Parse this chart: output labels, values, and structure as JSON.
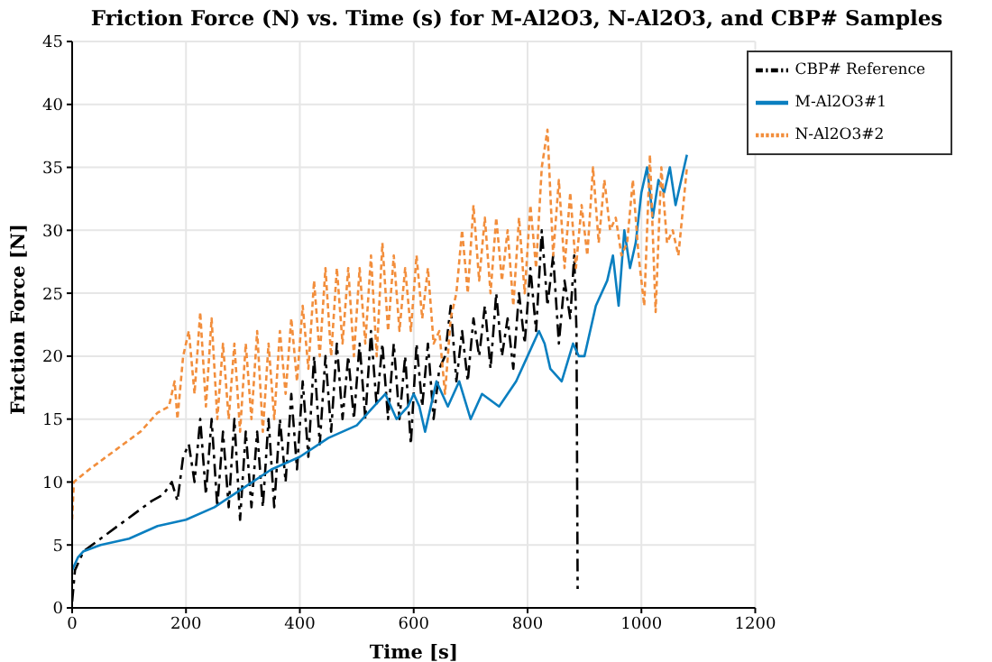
{
  "chart_data": {
    "type": "line",
    "title": "Friction Force (N) vs. Time (s) for M-Al2O3, N-Al2O3, and CBP# Samples",
    "xlabel": "Time [s]",
    "ylabel": "Friction Force [N]",
    "xlim": [
      0,
      1200
    ],
    "xticks": [
      0,
      200,
      400,
      600,
      800,
      1000,
      1200
    ],
    "ylim": [
      0,
      45
    ],
    "yticks": [
      0,
      5,
      10,
      15,
      20,
      25,
      30,
      35,
      40,
      45
    ],
    "grid": true,
    "legend": "top right",
    "marker": "none",
    "series": [
      {
        "name": "CBP# Reference",
        "color": "#000000",
        "line_style": "dashed",
        "x": [
          0,
          5,
          20,
          50,
          80,
          110,
          140,
          160,
          175,
          185,
          195,
          205,
          215,
          225,
          235,
          245,
          255,
          265,
          275,
          285,
          295,
          305,
          315,
          325,
          335,
          345,
          355,
          365,
          375,
          385,
          395,
          405,
          415,
          425,
          435,
          445,
          455,
          465,
          475,
          485,
          495,
          505,
          515,
          525,
          535,
          545,
          555,
          565,
          575,
          585,
          595,
          605,
          615,
          625,
          635,
          645,
          655,
          665,
          675,
          685,
          695,
          705,
          715,
          725,
          735,
          745,
          755,
          765,
          775,
          785,
          795,
          805,
          815,
          825,
          835,
          845,
          855,
          865,
          875,
          882,
          886,
          888
        ],
        "values": [
          0.5,
          3,
          4.5,
          5.5,
          6.5,
          7.5,
          8.5,
          9,
          10,
          8.5,
          12,
          13,
          10,
          15,
          9,
          15,
          8,
          14,
          8,
          15,
          7,
          14,
          8,
          14,
          8,
          15,
          8,
          15,
          10,
          17,
          11,
          18,
          12,
          20,
          13,
          20,
          14,
          21,
          15,
          20,
          15,
          21,
          15,
          22,
          16,
          21,
          15,
          21,
          15,
          20,
          13,
          21,
          16,
          21,
          15,
          19,
          20,
          24,
          18,
          22,
          18,
          23,
          20,
          24,
          19,
          25,
          20,
          23,
          19,
          25,
          21,
          27,
          22,
          30,
          24,
          28,
          21,
          26,
          23,
          28,
          22,
          1.5
        ]
      },
      {
        "name": "M-Al2O3#1",
        "color": "#0a7fc0",
        "line_style": "solid",
        "x": [
          0,
          10,
          20,
          50,
          100,
          150,
          200,
          250,
          300,
          350,
          400,
          450,
          500,
          530,
          550,
          570,
          590,
          600,
          610,
          620,
          640,
          660,
          680,
          700,
          720,
          750,
          780,
          800,
          820,
          830,
          840,
          860,
          880,
          890,
          900,
          920,
          940,
          950,
          960,
          970,
          980,
          990,
          1000,
          1010,
          1020,
          1030,
          1040,
          1050,
          1060,
          1070,
          1080
        ],
        "values": [
          3,
          4,
          4.5,
          5,
          5.5,
          6.5,
          7,
          8,
          9.5,
          11,
          12,
          13.5,
          14.5,
          16,
          17,
          15,
          16,
          17,
          16,
          14,
          18,
          16,
          18,
          15,
          17,
          16,
          18,
          20,
          22,
          21,
          19,
          18,
          21,
          20,
          20,
          24,
          26,
          28,
          24,
          30,
          27,
          29,
          33,
          35,
          31,
          34,
          33,
          35,
          32,
          34,
          36
        ]
      },
      {
        "name": "N-Al2O3#2",
        "color": "#f28e3c",
        "line_style": "dotted",
        "x": [
          0,
          3,
          30,
          60,
          90,
          120,
          150,
          170,
          180,
          185,
          195,
          205,
          215,
          225,
          235,
          245,
          255,
          265,
          275,
          285,
          295,
          305,
          315,
          325,
          335,
          345,
          355,
          365,
          375,
          385,
          395,
          405,
          415,
          425,
          435,
          445,
          455,
          465,
          475,
          485,
          495,
          505,
          515,
          525,
          535,
          545,
          555,
          565,
          575,
          585,
          595,
          605,
          615,
          625,
          635,
          645,
          655,
          665,
          675,
          685,
          695,
          705,
          715,
          725,
          735,
          745,
          755,
          765,
          775,
          785,
          795,
          805,
          815,
          825,
          835,
          845,
          855,
          865,
          875,
          885,
          895,
          905,
          915,
          925,
          935,
          945,
          955,
          965,
          975,
          985,
          995,
          1005,
          1015,
          1025,
          1035,
          1045,
          1055,
          1065,
          1080
        ],
        "values": [
          7,
          10,
          11,
          12,
          13,
          14,
          15.5,
          16,
          18,
          15,
          20,
          22,
          17,
          23.5,
          16,
          23,
          15,
          21,
          15,
          21,
          14,
          21,
          15,
          22,
          14,
          21,
          15,
          22,
          17,
          23,
          18,
          24,
          19,
          26,
          20,
          27,
          20,
          27,
          21,
          27,
          20,
          27,
          21,
          28,
          20,
          29,
          22,
          28,
          22,
          27,
          22,
          28,
          23,
          27,
          21,
          22,
          17,
          23,
          25,
          30,
          25,
          32,
          26,
          31,
          25,
          31,
          26,
          30,
          24,
          31,
          25,
          32,
          27,
          35,
          38,
          28,
          34,
          27,
          33,
          27,
          32,
          28,
          35,
          29,
          34,
          30,
          31,
          28,
          29,
          34,
          28,
          24,
          36,
          23.5,
          35,
          29,
          30,
          28,
          35
        ]
      }
    ]
  }
}
